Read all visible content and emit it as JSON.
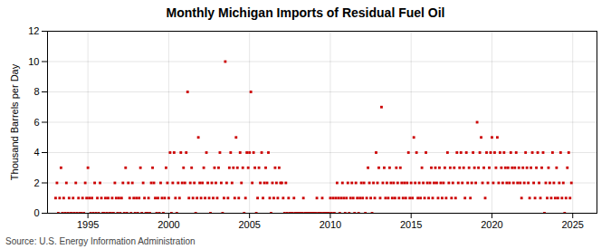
{
  "chart_data": {
    "type": "scatter",
    "title": "Monthly Michigan Imports of Residual Fuel Oil",
    "ylabel": "Thousand Barrels per Day",
    "source": "Source: U.S. Energy Information Administration",
    "color": "#cc0000",
    "marker": "square",
    "grid": true,
    "xlim": [
      1992.5,
      2026.5
    ],
    "xticks": [
      1995,
      2000,
      2005,
      2010,
      2015,
      2020,
      2025
    ],
    "ylim": [
      0,
      12
    ],
    "yticks": [
      0,
      2,
      4,
      6,
      8,
      10,
      12
    ],
    "x": [
      1993.0,
      1993.083,
      1993.167,
      1993.25,
      1993.333,
      1993.417,
      1993.5,
      1993.583,
      1993.667,
      1993.75,
      1993.833,
      1993.917,
      1994.0,
      1994.083,
      1994.167,
      1994.25,
      1994.333,
      1994.417,
      1994.5,
      1994.583,
      1994.667,
      1994.75,
      1994.833,
      1994.917,
      1995.0,
      1995.083,
      1995.167,
      1995.25,
      1995.333,
      1995.417,
      1995.5,
      1995.583,
      1995.667,
      1995.75,
      1995.833,
      1995.917,
      1996.0,
      1996.083,
      1996.167,
      1996.25,
      1996.333,
      1996.417,
      1996.5,
      1996.583,
      1996.667,
      1996.75,
      1996.833,
      1996.917,
      1997.0,
      1997.083,
      1997.167,
      1997.25,
      1997.333,
      1997.417,
      1997.5,
      1997.583,
      1997.667,
      1997.75,
      1997.833,
      1997.917,
      1998.0,
      1998.083,
      1998.167,
      1998.25,
      1998.333,
      1998.417,
      1998.5,
      1998.583,
      1998.667,
      1998.75,
      1998.833,
      1998.917,
      1999.0,
      1999.083,
      1999.167,
      1999.25,
      1999.333,
      1999.417,
      1999.5,
      1999.583,
      1999.667,
      1999.75,
      1999.833,
      1999.917,
      2000.0,
      2000.083,
      2000.167,
      2000.25,
      2000.333,
      2000.417,
      2000.5,
      2000.583,
      2000.667,
      2000.75,
      2000.833,
      2000.917,
      2001.0,
      2001.083,
      2001.167,
      2001.25,
      2001.333,
      2001.417,
      2001.5,
      2001.583,
      2001.667,
      2001.75,
      2001.833,
      2001.917,
      2002.0,
      2002.083,
      2002.167,
      2002.25,
      2002.333,
      2002.417,
      2002.5,
      2002.583,
      2002.667,
      2002.75,
      2002.833,
      2002.917,
      2003.0,
      2003.083,
      2003.167,
      2003.25,
      2003.333,
      2003.417,
      2003.5,
      2003.583,
      2003.667,
      2003.75,
      2003.833,
      2003.917,
      2004.0,
      2004.083,
      2004.167,
      2004.25,
      2004.333,
      2004.417,
      2004.5,
      2004.583,
      2004.667,
      2004.75,
      2004.833,
      2004.917,
      2005.0,
      2005.083,
      2005.167,
      2005.25,
      2005.333,
      2005.417,
      2005.5,
      2005.583,
      2005.667,
      2005.75,
      2005.833,
      2005.917,
      2006.0,
      2006.083,
      2006.167,
      2006.25,
      2006.333,
      2006.417,
      2006.5,
      2006.583,
      2006.667,
      2006.75,
      2006.833,
      2006.917,
      2007.0,
      2007.083,
      2007.167,
      2007.25,
      2007.333,
      2007.417,
      2007.5,
      2007.583,
      2007.667,
      2007.75,
      2007.833,
      2007.917,
      2008.0,
      2008.083,
      2008.167,
      2008.25,
      2008.333,
      2008.417,
      2008.5,
      2008.583,
      2008.667,
      2008.75,
      2008.833,
      2008.917,
      2009.0,
      2009.083,
      2009.167,
      2009.25,
      2009.333,
      2009.417,
      2009.5,
      2009.583,
      2009.667,
      2009.75,
      2009.833,
      2009.917,
      2010.0,
      2010.083,
      2010.167,
      2010.25,
      2010.333,
      2010.417,
      2010.5,
      2010.583,
      2010.667,
      2010.75,
      2010.833,
      2010.917,
      2011.0,
      2011.083,
      2011.167,
      2011.25,
      2011.333,
      2011.417,
      2011.5,
      2011.583,
      2011.667,
      2011.75,
      2011.833,
      2011.917,
      2012.0,
      2012.083,
      2012.167,
      2012.25,
      2012.333,
      2012.417,
      2012.5,
      2012.583,
      2012.667,
      2012.75,
      2012.833,
      2012.917,
      2013.0,
      2013.083,
      2013.167,
      2013.25,
      2013.333,
      2013.417,
      2013.5,
      2013.583,
      2013.667,
      2013.75,
      2013.833,
      2013.917,
      2014.0,
      2014.083,
      2014.167,
      2014.25,
      2014.333,
      2014.417,
      2014.5,
      2014.583,
      2014.667,
      2014.75,
      2014.833,
      2014.917,
      2015.0,
      2015.083,
      2015.167,
      2015.25,
      2015.333,
      2015.417,
      2015.5,
      2015.583,
      2015.667,
      2015.75,
      2015.833,
      2015.917,
      2016.0,
      2016.083,
      2016.167,
      2016.25,
      2016.333,
      2016.417,
      2016.5,
      2016.583,
      2016.667,
      2016.75,
      2016.833,
      2016.917,
      2017.0,
      2017.083,
      2017.167,
      2017.25,
      2017.333,
      2017.417,
      2017.5,
      2017.583,
      2017.667,
      2017.75,
      2017.833,
      2017.917,
      2018.0,
      2018.083,
      2018.167,
      2018.25,
      2018.333,
      2018.417,
      2018.5,
      2018.583,
      2018.667,
      2018.75,
      2018.833,
      2018.917,
      2019.0,
      2019.083,
      2019.167,
      2019.25,
      2019.333,
      2019.417,
      2019.5,
      2019.583,
      2019.667,
      2019.75,
      2019.833,
      2019.917,
      2020.0,
      2020.083,
      2020.167,
      2020.25,
      2020.333,
      2020.417,
      2020.5,
      2020.583,
      2020.667,
      2020.75,
      2020.833,
      2020.917,
      2021.0,
      2021.083,
      2021.167,
      2021.25,
      2021.333,
      2021.417,
      2021.5,
      2021.583,
      2021.667,
      2021.75,
      2021.833,
      2021.917,
      2022.0,
      2022.083,
      2022.167,
      2022.25,
      2022.333,
      2022.417,
      2022.5,
      2022.583,
      2022.667,
      2022.75,
      2022.833,
      2022.917,
      2023.0,
      2023.083,
      2023.167,
      2023.25,
      2023.333,
      2023.417,
      2023.5,
      2023.583,
      2023.667,
      2023.75,
      2023.833,
      2023.917,
      2024.0,
      2024.083,
      2024.167,
      2024.25,
      2024.333,
      2024.417,
      2024.5,
      2024.583,
      2024.667,
      2024.75,
      2024.833,
      2024.917
    ],
    "values": [
      1,
      2,
      0,
      1,
      3,
      0,
      1,
      0,
      2,
      0,
      1,
      0,
      0,
      1,
      0,
      2,
      0,
      1,
      0,
      0,
      1,
      0,
      2,
      1,
      3,
      1,
      0,
      1,
      0,
      2,
      0,
      1,
      0,
      2,
      1,
      0,
      0,
      1,
      0,
      1,
      0,
      0,
      1,
      0,
      2,
      1,
      0,
      1,
      0,
      1,
      2,
      0,
      3,
      0,
      2,
      1,
      0,
      2,
      1,
      0,
      1,
      0,
      1,
      3,
      0,
      2,
      1,
      0,
      0,
      1,
      0,
      2,
      3,
      2,
      1,
      0,
      1,
      0,
      2,
      1,
      0,
      1,
      3,
      2,
      1,
      4,
      0,
      2,
      4,
      1,
      0,
      2,
      1,
      4,
      2,
      3,
      2,
      4,
      8,
      1,
      2,
      3,
      1,
      2,
      0,
      1,
      5,
      2,
      1,
      2,
      3,
      1,
      4,
      2,
      1,
      0,
      2,
      1,
      3,
      2,
      1,
      3,
      4,
      2,
      0,
      1,
      10,
      2,
      1,
      3,
      4,
      2,
      3,
      1,
      5,
      3,
      1,
      4,
      2,
      3,
      0,
      1,
      4,
      3,
      4,
      8,
      2,
      4,
      3,
      0,
      1,
      3,
      2,
      4,
      1,
      2,
      3,
      2,
      4,
      1,
      0,
      2,
      1,
      3,
      2,
      1,
      3,
      2,
      2,
      1,
      0,
      2,
      0,
      1,
      0,
      0,
      0,
      1,
      0,
      0,
      0,
      0,
      0,
      0,
      1,
      0,
      0,
      0,
      0,
      0,
      0,
      0,
      0,
      0,
      1,
      0,
      0,
      0,
      1,
      0,
      0,
      0,
      0,
      0,
      1,
      0,
      1,
      0,
      1,
      2,
      1,
      0,
      1,
      2,
      1,
      0,
      1,
      2,
      0,
      1,
      2,
      1,
      0,
      2,
      1,
      0,
      1,
      2,
      1,
      2,
      0,
      1,
      3,
      2,
      1,
      0,
      2,
      1,
      4,
      2,
      3,
      1,
      7,
      2,
      3,
      1,
      2,
      1,
      3,
      2,
      1,
      2,
      1,
      3,
      2,
      1,
      3,
      2,
      1,
      2,
      1,
      2,
      4,
      1,
      2,
      1,
      5,
      2,
      4,
      1,
      2,
      1,
      3,
      2,
      1,
      4,
      2,
      1,
      2,
      3,
      1,
      2,
      3,
      2,
      1,
      3,
      2,
      1,
      2,
      3,
      1,
      4,
      2,
      3,
      1,
      2,
      3,
      1,
      4,
      2,
      3,
      4,
      2,
      3,
      1,
      4,
      2,
      3,
      1,
      2,
      4,
      3,
      2,
      6,
      3,
      4,
      5,
      2,
      3,
      1,
      4,
      2,
      3,
      4,
      5,
      2,
      4,
      3,
      5,
      2,
      4,
      3,
      2,
      4,
      3,
      2,
      3,
      2,
      4,
      3,
      2,
      3,
      4,
      2,
      3,
      2,
      1,
      3,
      2,
      4,
      3,
      2,
      1,
      3,
      4,
      2,
      1,
      3,
      4,
      2,
      1,
      3,
      4,
      0,
      2,
      1,
      3,
      2,
      1,
      4,
      2,
      1,
      3,
      1,
      2,
      4,
      1,
      2,
      0,
      1,
      3,
      4,
      1,
      2
    ]
  }
}
